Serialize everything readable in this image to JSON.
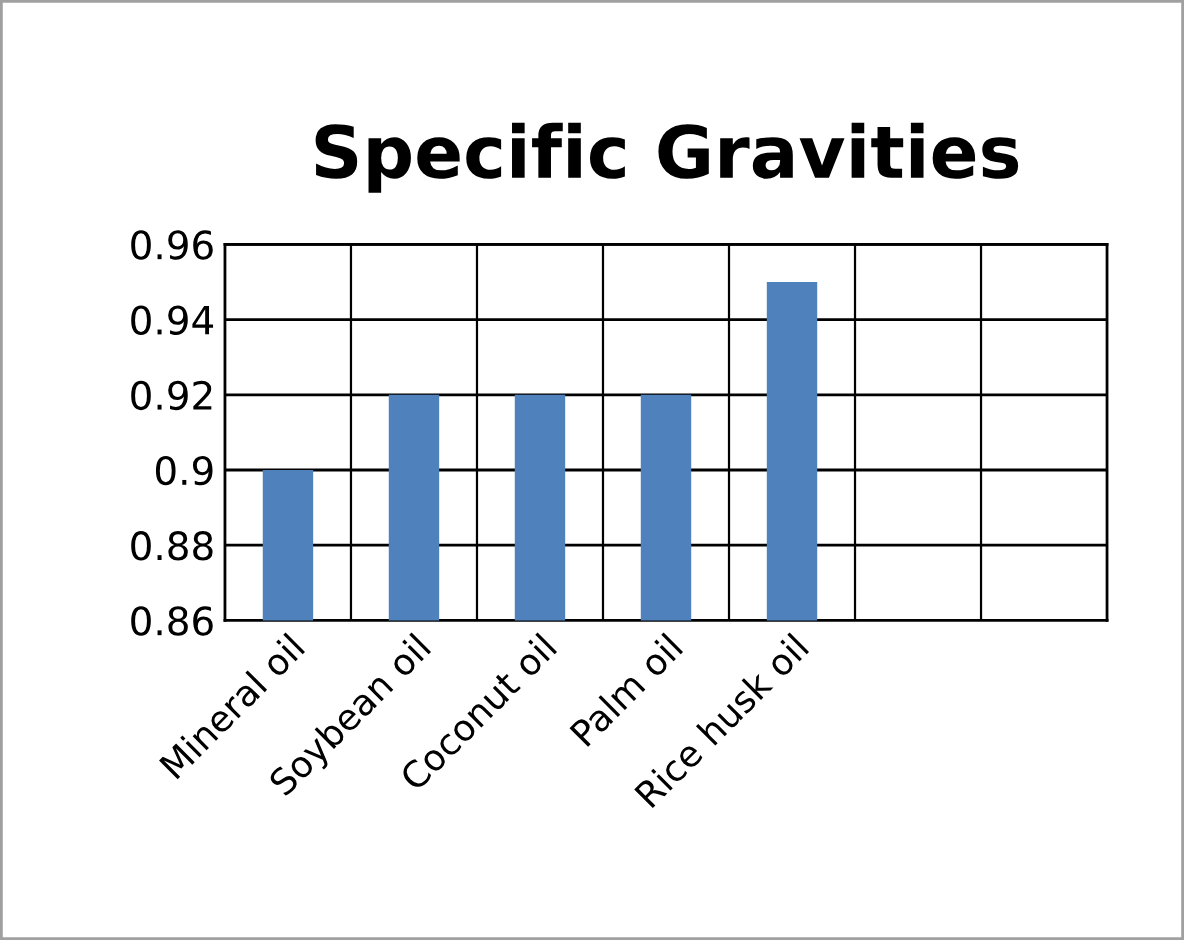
{
  "chart_data": {
    "type": "bar",
    "title": "Specific Gravities",
    "categories": [
      "Mineral oil",
      "Soybean oil",
      "Coconut oil",
      "Palm oil",
      "Rice husk oil",
      null,
      null
    ],
    "values": [
      0.9,
      0.92,
      0.92,
      0.92,
      0.95,
      null,
      null
    ],
    "color": "#4f81bd",
    "ylim": [
      0.86,
      0.96
    ],
    "yticks": [
      0.86,
      0.88,
      0.9,
      0.92,
      0.94,
      0.96
    ],
    "grid": true
  }
}
